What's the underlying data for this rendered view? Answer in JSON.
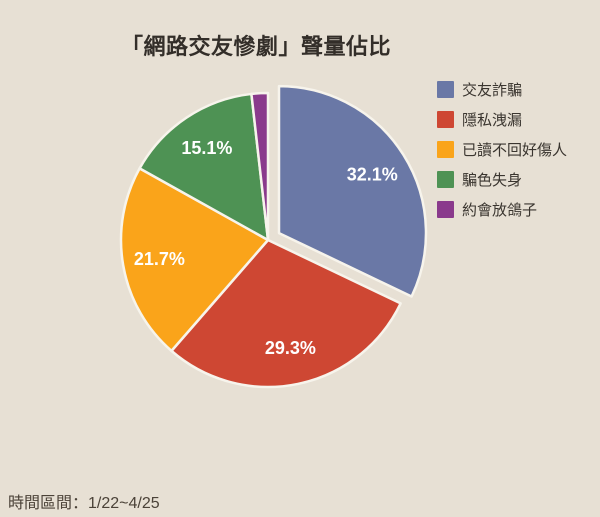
{
  "page": {
    "background_color": "#E7E0D4"
  },
  "footer": {
    "caption": "時間區間：1/22~4/25"
  },
  "chart_data": {
    "type": "pie",
    "title": "「網路交友慘劇」聲量佔比",
    "unit": "percent",
    "direction": "clockwise",
    "start_angle_deg": 0,
    "legend_position": "right",
    "label_color": "#FFFFFF",
    "separator_color": "#F7F4EC",
    "slices": [
      {
        "label": "交友詐騙",
        "value": 32.1,
        "pct_label": "32.1%",
        "color": "#6A78A6",
        "exploded": true
      },
      {
        "label": "隱私洩漏",
        "value": 29.3,
        "pct_label": "29.3%",
        "color": "#CE4733",
        "exploded": false
      },
      {
        "label": "已讀不回好傷人",
        "value": 21.7,
        "pct_label": "21.7%",
        "color": "#FAA41A",
        "exploded": false
      },
      {
        "label": "騙色失身",
        "value": 15.1,
        "pct_label": "15.1%",
        "color": "#4E9254",
        "exploded": false
      },
      {
        "label": "約會放鴿子",
        "value": 1.8,
        "pct_label": "",
        "color": "#8A3A8C",
        "exploded": false
      }
    ]
  }
}
